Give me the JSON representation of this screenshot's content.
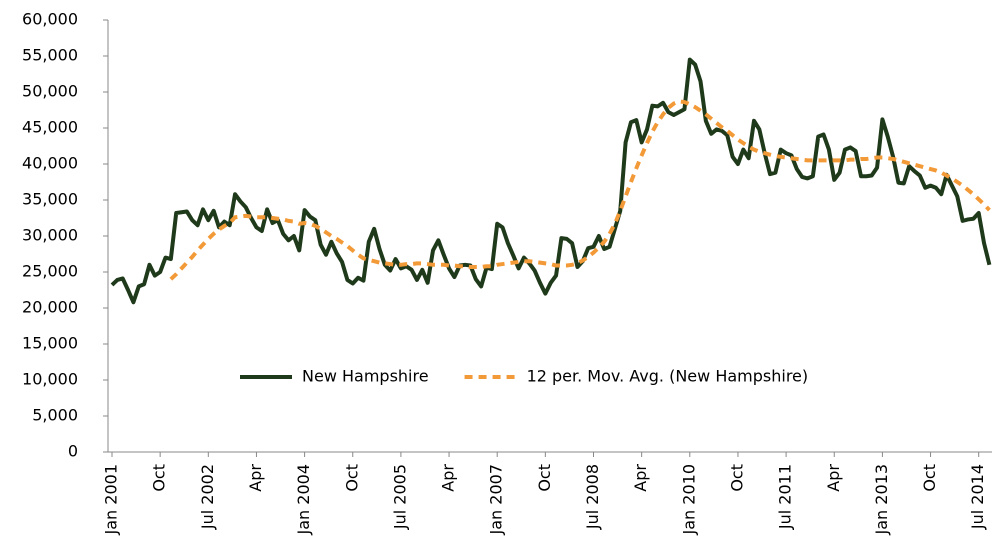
{
  "chart_data": {
    "type": "line",
    "categories": [
      "Jan 2001",
      null,
      null,
      null,
      null,
      null,
      null,
      null,
      null,
      "Oct",
      null,
      null,
      null,
      null,
      null,
      null,
      null,
      null,
      "Jul 2002",
      null,
      null,
      null,
      null,
      null,
      null,
      null,
      null,
      "Apr",
      null,
      null,
      null,
      null,
      null,
      null,
      null,
      null,
      "Jan 2004",
      null,
      null,
      null,
      null,
      null,
      null,
      null,
      null,
      "Oct",
      null,
      null,
      null,
      null,
      null,
      null,
      null,
      null,
      "Jul 2005",
      null,
      null,
      null,
      null,
      null,
      null,
      null,
      null,
      "Apr",
      null,
      null,
      null,
      null,
      null,
      null,
      null,
      null,
      "Jan 2007",
      null,
      null,
      null,
      null,
      null,
      null,
      null,
      null,
      "Oct",
      null,
      null,
      null,
      null,
      null,
      null,
      null,
      null,
      "Jul 2008",
      null,
      null,
      null,
      null,
      null,
      null,
      null,
      null,
      "Apr",
      null,
      null,
      null,
      null,
      null,
      null,
      null,
      null,
      "Jan 2010",
      null,
      null,
      null,
      null,
      null,
      null,
      null,
      null,
      "Oct",
      null,
      null,
      null,
      null,
      null,
      null,
      null,
      null,
      "Jul 2011",
      null,
      null,
      null,
      null,
      null,
      null,
      null,
      null,
      "Apr",
      null,
      null,
      null,
      null,
      null,
      null,
      null,
      null,
      "Jan 2013",
      null,
      null,
      null,
      null,
      null,
      null,
      null,
      null,
      "Oct",
      null,
      null,
      null,
      null,
      null,
      null,
      null,
      null,
      "Jul 2014",
      null,
      null
    ],
    "series": [
      {
        "name": "New Hampshire",
        "color": "#1f3a1a",
        "dash": false,
        "values": [
          23200,
          23900,
          24100,
          22500,
          20800,
          23000,
          23300,
          26000,
          24500,
          25000,
          27000,
          26800,
          33200,
          33300,
          33400,
          32200,
          31500,
          33700,
          32200,
          33500,
          31200,
          32000,
          31500,
          35800,
          34800,
          34000,
          32500,
          31200,
          30700,
          33700,
          31800,
          32200,
          30300,
          29400,
          30000,
          28000,
          33600,
          32700,
          32200,
          28800,
          27400,
          29200,
          27600,
          26400,
          23900,
          23400,
          24200,
          23800,
          29200,
          31000,
          28200,
          26000,
          25200,
          26800,
          25500,
          25800,
          25300,
          23900,
          25300,
          23500,
          28000,
          29400,
          27400,
          25500,
          24300,
          25900,
          26000,
          25900,
          24000,
          23000,
          25600,
          25400,
          31700,
          31200,
          29000,
          27300,
          25500,
          27000,
          26200,
          25200,
          23500,
          22000,
          23500,
          24500,
          29700,
          29600,
          29000,
          25700,
          26500,
          28300,
          28500,
          30000,
          28200,
          28500,
          31000,
          33500,
          43000,
          45800,
          46100,
          43000,
          44800,
          48100,
          48000,
          48500,
          47200,
          46800,
          47200,
          47600,
          54500,
          53800,
          51500,
          46000,
          44200,
          44800,
          44600,
          44000,
          41000,
          40000,
          42000,
          40800,
          46000,
          44800,
          41500,
          38600,
          38800,
          42000,
          41500,
          41200,
          39300,
          38200,
          38000,
          38300,
          43800,
          44100,
          42000,
          37800,
          38800,
          42000,
          42300,
          41800,
          38300,
          38300,
          38400,
          39500,
          46200,
          43800,
          41000,
          37400,
          37300,
          39700,
          39000,
          38400,
          36700,
          37000,
          36700,
          35800,
          38500,
          37000,
          35500,
          32100,
          32300,
          32400,
          33200,
          29000,
          26000
        ]
      },
      {
        "name": "12 per. Mov. Avg. (New Hampshire)",
        "color": "#f39a38",
        "dash": true,
        "values": [
          null,
          null,
          null,
          null,
          null,
          null,
          null,
          null,
          null,
          null,
          null,
          24000,
          24700,
          25500,
          26300,
          27100,
          28000,
          28800,
          29600,
          30300,
          30900,
          31400,
          31800,
          32600,
          32700,
          32800,
          32700,
          32600,
          32600,
          32600,
          32500,
          32400,
          32300,
          32100,
          32000,
          31700,
          31800,
          31700,
          31400,
          31000,
          30500,
          30000,
          29600,
          29100,
          28600,
          28000,
          27400,
          26900,
          26700,
          26500,
          26300,
          26200,
          26100,
          26000,
          26000,
          26100,
          26100,
          26200,
          26200,
          26100,
          26000,
          26000,
          26000,
          25900,
          25900,
          25800,
          25800,
          25700,
          25700,
          25700,
          25800,
          25800,
          26000,
          26100,
          26200,
          26300,
          26400,
          26500,
          26500,
          26400,
          26300,
          26200,
          26100,
          25900,
          25900,
          25900,
          26000,
          26200,
          26600,
          27100,
          27700,
          28400,
          29200,
          30300,
          31700,
          33500,
          35500,
          37500,
          39400,
          41200,
          42900,
          44500,
          45800,
          46900,
          47800,
          48400,
          48700,
          48600,
          48300,
          47900,
          47400,
          46900,
          46300,
          45700,
          45100,
          44600,
          44000,
          43400,
          42900,
          42400,
          42000,
          41700,
          41500,
          41300,
          41100,
          41000,
          40900,
          40800,
          40700,
          40600,
          40500,
          40500,
          40500,
          40500,
          40500,
          40500,
          40500,
          40500,
          40600,
          40600,
          40700,
          40700,
          40800,
          40900,
          40900,
          40800,
          40700,
          40500,
          40300,
          40100,
          39900,
          39700,
          39500,
          39300,
          39100,
          38800,
          38400,
          38000,
          37500,
          37000,
          36400,
          35800,
          35100,
          34400,
          33600
        ]
      }
    ],
    "ylim": [
      0,
      60000
    ],
    "yticks": [
      0,
      {
        "value": 5000,
        "label": "5,000"
      },
      {
        "value": 10000,
        "label": "10,000"
      },
      {
        "value": 15000,
        "label": "15,000"
      },
      {
        "value": 20000,
        "label": "20,000"
      },
      {
        "value": 25000,
        "label": "25,000"
      },
      {
        "value": 30000,
        "label": "30,000"
      },
      {
        "value": 35000,
        "label": "35,000"
      },
      {
        "value": 40000,
        "label": "40,000"
      },
      {
        "value": 45000,
        "label": "45,000"
      },
      {
        "value": 50000,
        "label": "50,000"
      },
      {
        "value": 55000,
        "label": "55,000"
      },
      {
        "value": 60000,
        "label": "60,000"
      }
    ],
    "grid": false,
    "legend": "bottom"
  }
}
